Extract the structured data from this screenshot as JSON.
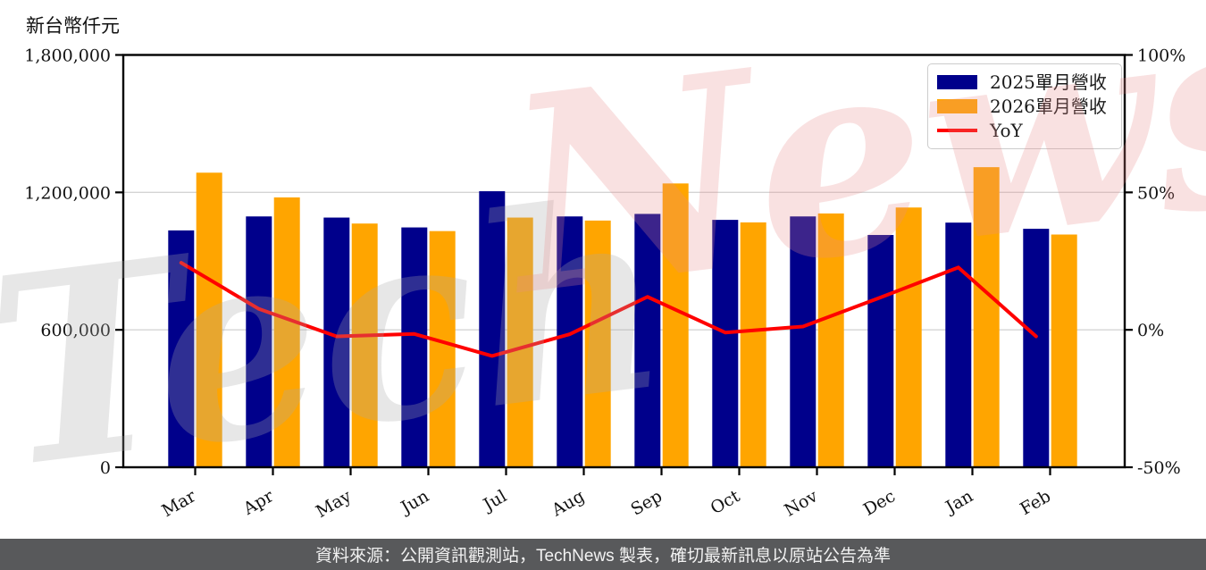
{
  "axis_title": "新台幣仟元",
  "watermark": {
    "part1": "Tech",
    "part2": "News"
  },
  "legend": {
    "position": "top-right",
    "items": [
      {
        "label": "2025單月營收",
        "color": "#00008B",
        "swatch": "box"
      },
      {
        "label": "2026單月營收",
        "color": "#FFA500",
        "swatch": "box"
      },
      {
        "label": "YoY",
        "color": "#FF0000",
        "swatch": "line"
      }
    ]
  },
  "footer": {
    "text": "資料來源：公開資訊觀測站，TechNews 製表，確切最新訊息以原站公告為準",
    "background": "#58595b",
    "text_color": "#f2f2f2"
  },
  "chart_data": {
    "type": "bar",
    "title": "",
    "categories": [
      "Mar",
      "Apr",
      "May",
      "Jun",
      "Jul",
      "Aug",
      "Sep",
      "Oct",
      "Nov",
      "Dec",
      "Jan",
      "Feb"
    ],
    "series": [
      {
        "name": "2025單月營收",
        "type": "bar",
        "color": "#00008B",
        "axis": "left",
        "values": [
          1034000,
          1095000,
          1090000,
          1047000,
          1205000,
          1095000,
          1106000,
          1080000,
          1095000,
          1014000,
          1068000,
          1041000
        ]
      },
      {
        "name": "2026單月營收",
        "type": "bar",
        "color": "#FFA500",
        "axis": "left",
        "values": [
          1286000,
          1178000,
          1064000,
          1031000,
          1090000,
          1077000,
          1239000,
          1069000,
          1108000,
          1134000,
          1310000,
          1016000
        ]
      },
      {
        "name": "YoY",
        "type": "line",
        "color": "#FF0000",
        "axis": "right",
        "unit": "%",
        "values": [
          24.4,
          7.6,
          -2.4,
          -1.5,
          -9.5,
          -1.6,
          12.0,
          -1.0,
          1.2,
          11.8,
          22.7,
          -2.4
        ]
      }
    ],
    "left_axis": {
      "title": "新台幣仟元",
      "range": [
        0,
        1800000
      ],
      "ticks": [
        {
          "value": 0,
          "label": "0"
        },
        {
          "value": 600000,
          "label": "600,000"
        },
        {
          "value": 1200000,
          "label": "1,200,000"
        },
        {
          "value": 1800000,
          "label": "1,800,000"
        }
      ]
    },
    "right_axis": {
      "range": [
        -50,
        100
      ],
      "ticks": [
        {
          "value": -50,
          "label": "-50%"
        },
        {
          "value": 0,
          "label": "0%"
        },
        {
          "value": 50,
          "label": "50%"
        },
        {
          "value": 100,
          "label": "100%"
        }
      ]
    },
    "grid": {
      "horizontal": true,
      "color": "#d4d4d4"
    },
    "frame_color": "#000000"
  }
}
